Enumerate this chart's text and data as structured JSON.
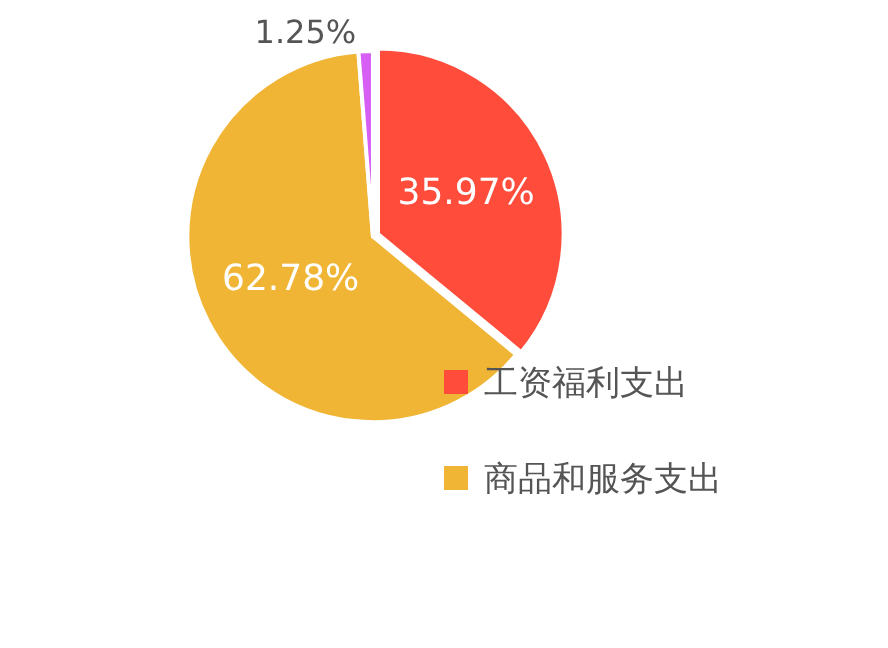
{
  "chart_data": {
    "type": "pie",
    "categories": [
      "工资福利支出",
      "商品和服务支出",
      null
    ],
    "values": [
      35.97,
      62.78,
      1.25
    ],
    "colors": [
      "#ff4c3b",
      "#f0b535",
      "#d65ef5"
    ],
    "value_labels": [
      "35.97%",
      "62.78%",
      "1.25%"
    ],
    "legend": "bottom right"
  }
}
